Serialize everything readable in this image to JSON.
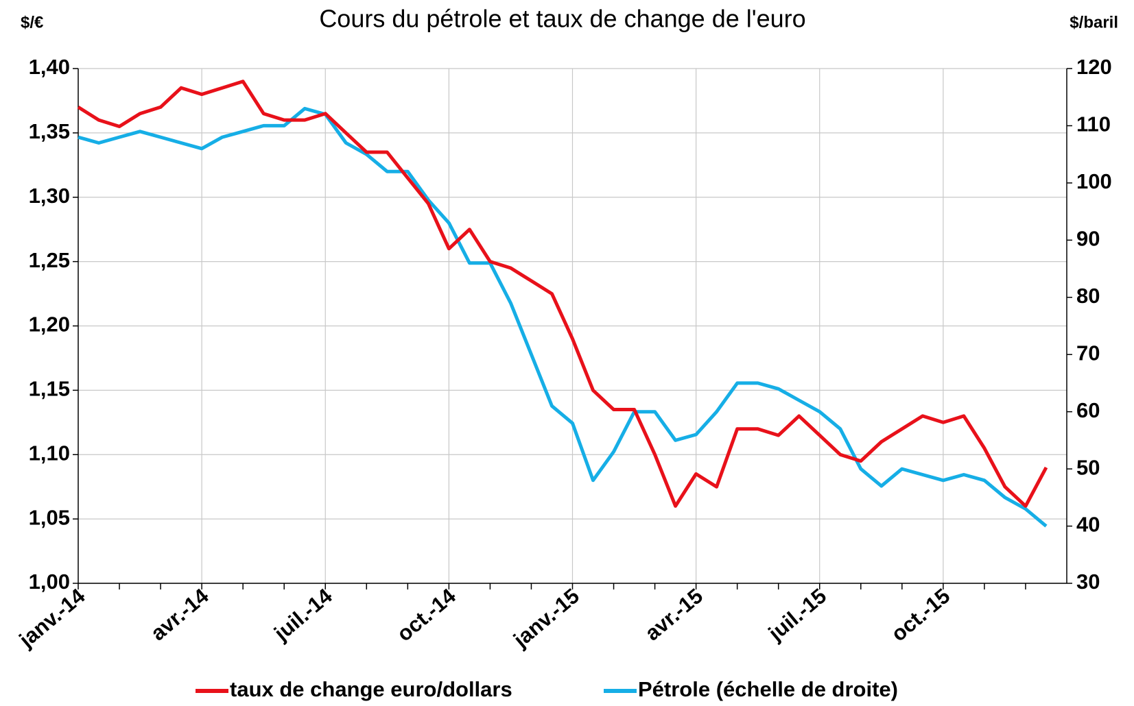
{
  "chart_data": {
    "type": "line",
    "title": "Cours du pétrole et taux de change de l'euro",
    "y_label": "$/€",
    "y2_label": "$/baril",
    "categories": [
      "janv.-14",
      null,
      null,
      null,
      null,
      null,
      "avr.-14",
      null,
      null,
      null,
      null,
      null,
      "juil.-14",
      null,
      null,
      null,
      null,
      null,
      "oct.-14",
      null,
      null,
      null,
      null,
      null,
      "janv.-15",
      null,
      null,
      null,
      null,
      null,
      "avr.-15",
      null,
      null,
      null,
      null,
      null,
      "juil.-15",
      null,
      null,
      null,
      null,
      null,
      "oct.-15",
      null,
      null,
      null,
      null,
      null
    ],
    "series": [
      {
        "name": "taux de change euro/dollars",
        "color": "#e8111a",
        "axis": "y",
        "values": [
          1.37,
          1.36,
          1.355,
          1.365,
          1.37,
          1.385,
          1.38,
          1.385,
          1.39,
          1.365,
          1.36,
          1.36,
          1.365,
          1.35,
          1.335,
          1.335,
          1.315,
          1.295,
          1.26,
          1.275,
          1.25,
          1.245,
          1.235,
          1.225,
          1.19,
          1.15,
          1.135,
          1.135,
          1.1,
          1.06,
          1.085,
          1.075,
          1.12,
          1.12,
          1.115,
          1.13,
          1.115,
          1.1,
          1.095,
          1.11,
          1.12,
          1.13,
          1.125,
          1.13,
          1.105,
          1.075,
          1.06,
          1.09
        ]
      },
      {
        "name": "Pétrole (échelle de droite)",
        "color": "#16aee6",
        "axis": "y2",
        "values": [
          108,
          107,
          108,
          109,
          108,
          107,
          106,
          108,
          109,
          110,
          110,
          113,
          112,
          107,
          105,
          102,
          102,
          97,
          93,
          86,
          86,
          79,
          70,
          61,
          58,
          48,
          53,
          60,
          60,
          55,
          56,
          60,
          65,
          65,
          64,
          62,
          60,
          57,
          50,
          47,
          50,
          49,
          48,
          49,
          48,
          45,
          43,
          40
        ]
      }
    ],
    "ylim": [
      1.0,
      1.4
    ],
    "yticks": [
      {
        "value": 1.0,
        "label": "1,00"
      },
      {
        "value": 1.05,
        "label": "1,05"
      },
      {
        "value": 1.1,
        "label": "1,10"
      },
      {
        "value": 1.15,
        "label": "1,15"
      },
      {
        "value": 1.2,
        "label": "1,20"
      },
      {
        "value": 1.25,
        "label": "1,25"
      },
      {
        "value": 1.3,
        "label": "1,30"
      },
      {
        "value": 1.35,
        "label": "1,35"
      },
      {
        "value": 1.4,
        "label": "1,40"
      }
    ],
    "y2lim": [
      30,
      120
    ],
    "y2ticks": [
      30,
      40,
      50,
      60,
      70,
      80,
      90,
      100,
      110,
      120
    ],
    "grid": true
  }
}
